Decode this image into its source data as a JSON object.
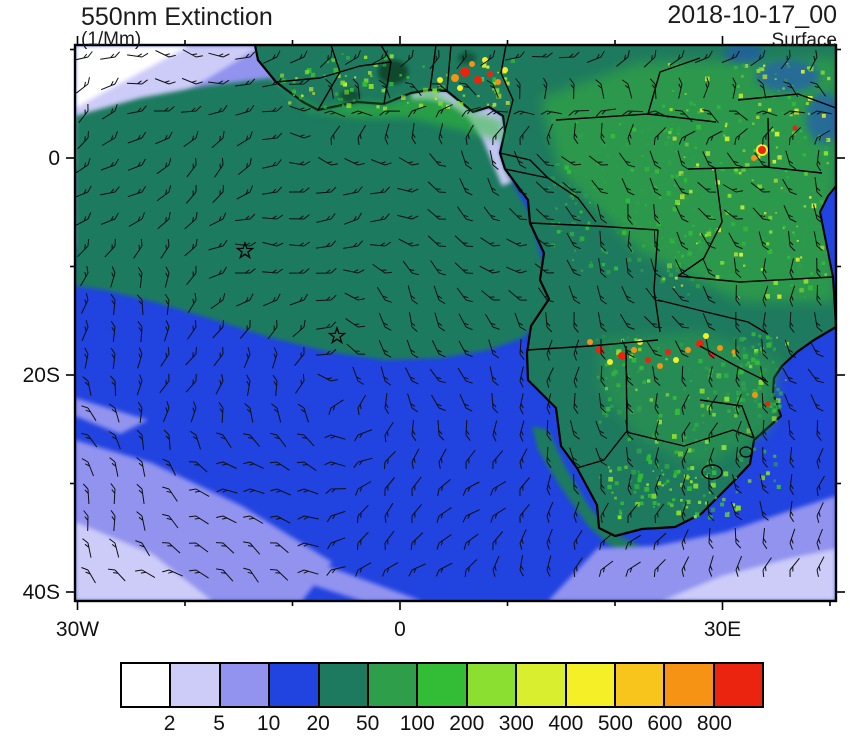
{
  "header": {
    "title": "550nm Extinction",
    "units": "(1/Mm)",
    "datetime": "2018-10-17_00",
    "level": "Surface"
  },
  "axes": {
    "y_ticks": [
      {
        "label": "0",
        "lat": 0
      },
      {
        "label": "20S",
        "lat": -20
      },
      {
        "label": "40S",
        "lat": -40
      }
    ],
    "x_ticks": [
      {
        "label": "30W",
        "lon": -30
      },
      {
        "label": "0",
        "lon": 0
      },
      {
        "label": "30E",
        "lon": 30
      }
    ],
    "minor_lons": [
      -20,
      -10,
      10,
      20,
      40
    ],
    "minor_lats": [
      10,
      -10,
      -30
    ]
  },
  "colorbar": {
    "colors": [
      "#ffffff",
      "#cdccf8",
      "#9193ef",
      "#2143e0",
      "#1e7a5e",
      "#2f9e4a",
      "#33bd36",
      "#8adf30",
      "#d8ee2e",
      "#f5ef28",
      "#f8c51c",
      "#f79314",
      "#eb2410"
    ],
    "boundary_labels": [
      "2",
      "5",
      "10",
      "20",
      "50",
      "100",
      "200",
      "300",
      "400",
      "500",
      "600",
      "800"
    ]
  },
  "chart_data": {
    "type": "heatmap",
    "title": "550nm Extinction",
    "units": "1/Mm",
    "valid_time": "2018-10-17_00",
    "level": "Surface",
    "lon_range_deg": [
      -30.5,
      40.5
    ],
    "lat_range_deg": [
      -40.8,
      10.4
    ],
    "x_tick_labels": [
      "30W",
      "0",
      "30E"
    ],
    "y_tick_labels": [
      "0",
      "20S",
      "40S"
    ],
    "color_levels": [
      2,
      5,
      10,
      20,
      50,
      100,
      200,
      300,
      400,
      500,
      600,
      800
    ],
    "overlay": "surface wind barbs",
    "markers": [
      {
        "type": "open-star",
        "lon": -14.4,
        "lat": -8.6
      },
      {
        "type": "open-star",
        "lon": -5.9,
        "lat": -16.4
      }
    ],
    "features": [
      {
        "region": "Gulf of Guinea coast (Ghana-Togo-Benin-Nigeria)",
        "extinction": "500 to >800"
      },
      {
        "region": "South Atlantic smoke plume off Gabon-Angola extending west past 30W between 0 and 20S",
        "extinction": "20-100"
      },
      {
        "region": "Congo Basin and East Africa interior",
        "extinction": "50-300 with local >800 near Lake Victoria"
      },
      {
        "region": "Angola-Zambia biomass burning belt near 13S-18S",
        "extinction": "scattered 300 to >800"
      },
      {
        "region": "Subtropical southeast Atlantic and Southern Ocean edge",
        "extinction": "2-10"
      },
      {
        "region": "Northwest open Atlantic corner",
        "extinction": "under 2 to 5"
      }
    ]
  }
}
